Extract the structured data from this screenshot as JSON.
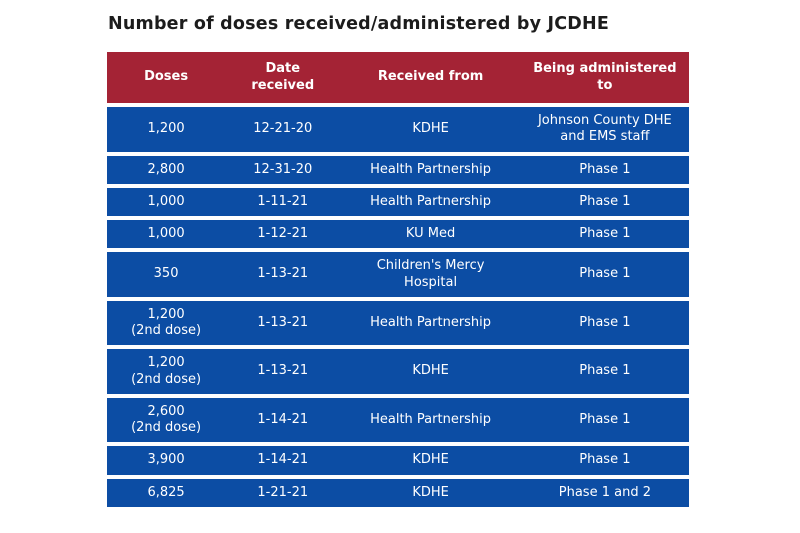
{
  "title": "Number of doses received/administered by JCDHE",
  "colors": {
    "header_bg": "#a42335",
    "row_bg": "#0c4da4",
    "cell_text": "#ffffff",
    "title_text": "#1c1c1c",
    "page_bg": "#ffffff"
  },
  "chart_data": {
    "type": "table",
    "title": "Number of doses received/administered by JCDHE",
    "columns": [
      "Doses",
      "Date\nreceived",
      "Received from",
      "Being administered\nto"
    ],
    "column_keys": [
      "doses",
      "date-received",
      "received-from",
      "being-administered-to"
    ],
    "rows": [
      [
        "1,200",
        "12-21-20",
        "KDHE",
        "Johnson County DHE\nand EMS staff"
      ],
      [
        "2,800",
        "12-31-20",
        "Health Partnership",
        "Phase 1"
      ],
      [
        "1,000",
        "1-11-21",
        "Health Partnership",
        "Phase 1"
      ],
      [
        "1,000",
        "1-12-21",
        "KU Med",
        "Phase 1"
      ],
      [
        "350",
        "1-13-21",
        "Children's Mercy\nHospital",
        "Phase 1"
      ],
      [
        "1,200\n(2nd dose)",
        "1-13-21",
        "Health Partnership",
        "Phase 1"
      ],
      [
        "1,200\n(2nd dose)",
        "1-13-21",
        "KDHE",
        "Phase 1"
      ],
      [
        "2,600\n(2nd dose)",
        "1-14-21",
        "Health Partnership",
        "Phase 1"
      ],
      [
        "3,900",
        "1-14-21",
        "KDHE",
        "Phase 1"
      ],
      [
        "6,825",
        "1-21-21",
        "KDHE",
        "Phase 1 and 2"
      ]
    ]
  }
}
